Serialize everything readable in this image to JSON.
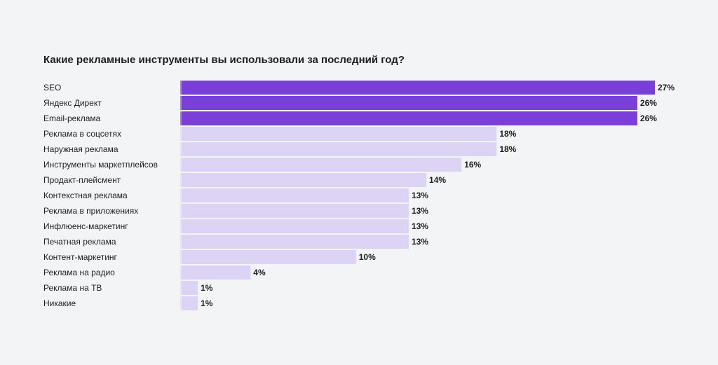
{
  "chart_data": {
    "type": "bar",
    "orientation": "horizontal",
    "title": "Какие рекламные инструменты вы использовали за последний год?",
    "categories": [
      "SEO",
      "Яндекс Директ",
      "Email-реклама",
      "Реклама в соцсетях",
      "Наружная реклама",
      "Инструменты маркетплейсов",
      "Продакт-плейсмент",
      "Контекстная реклама",
      "Реклама в приложениях",
      "Инфлюенс-маркетинг",
      "Печатная реклама",
      "Контент-маркетинг",
      "Реклама на радио",
      "Реклама на ТВ",
      "Никакие"
    ],
    "values": [
      27,
      26,
      26,
      18,
      18,
      16,
      14,
      13,
      13,
      13,
      13,
      10,
      4,
      1,
      1
    ],
    "value_suffix": "%",
    "highlighted": [
      true,
      true,
      true,
      false,
      false,
      false,
      false,
      false,
      false,
      false,
      false,
      false,
      false,
      false,
      false
    ],
    "colors": {
      "highlight": "#7b3fd9",
      "normal": "#dcd3f5",
      "background": "#f3f4f6"
    },
    "xlim": [
      0,
      27
    ],
    "grid": false,
    "legend": "none"
  }
}
